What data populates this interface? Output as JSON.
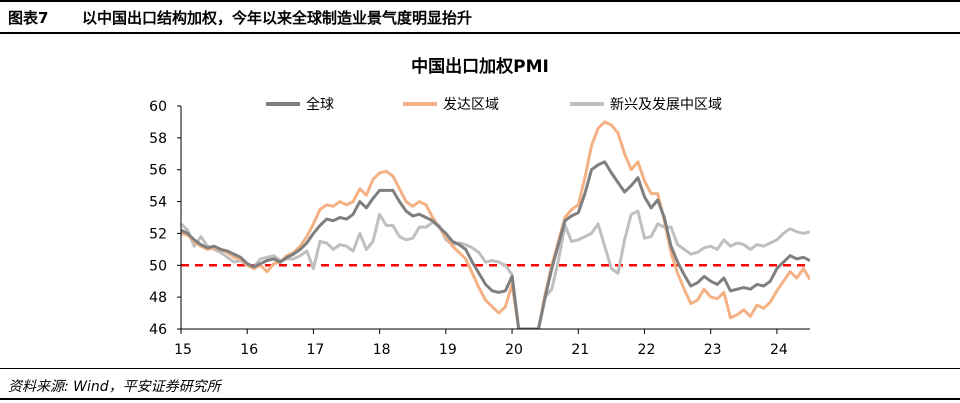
{
  "header": {
    "figure_label": "图表7",
    "title": "以中国出口结构加权，今年以来全球制造业景气度明显抬升"
  },
  "footer": {
    "source": "资料来源: Wind，平安证券研究所"
  },
  "colors": {
    "global": "#7f7f7f",
    "developed": "#f4b183",
    "emerging": "#bfbfbf",
    "reference": "#ff0000"
  },
  "chart_data": {
    "type": "line",
    "title": "中国出口加权PMI",
    "xlabel": "",
    "ylabel": "",
    "xlim": [
      15.0,
      24.5
    ],
    "ylim": [
      46,
      60
    ],
    "xticks": [
      15,
      16,
      17,
      18,
      19,
      20,
      21,
      22,
      23,
      24
    ],
    "xtick_labels": [
      "15",
      "16",
      "17",
      "18",
      "19",
      "20",
      "21",
      "22",
      "23",
      "24"
    ],
    "yticks": [
      46,
      48,
      50,
      52,
      54,
      56,
      58,
      60
    ],
    "ytick_labels": [
      "46",
      "48",
      "50",
      "52",
      "54",
      "56",
      "58",
      "60"
    ],
    "reference_line": {
      "y": 50,
      "style": "dashed"
    },
    "legend_position": "top",
    "series": [
      {
        "name": "全球",
        "color": "#7f7f7f",
        "points": [
          [
            15.0,
            52.2
          ],
          [
            15.1,
            52.0
          ],
          [
            15.2,
            51.6
          ],
          [
            15.3,
            51.3
          ],
          [
            15.4,
            51.1
          ],
          [
            15.5,
            51.2
          ],
          [
            15.6,
            51.0
          ],
          [
            15.7,
            50.9
          ],
          [
            15.8,
            50.7
          ],
          [
            15.9,
            50.5
          ],
          [
            16.0,
            50.1
          ],
          [
            16.1,
            49.9
          ],
          [
            16.2,
            50.1
          ],
          [
            16.3,
            50.3
          ],
          [
            16.4,
            50.4
          ],
          [
            16.5,
            50.2
          ],
          [
            16.6,
            50.5
          ],
          [
            16.7,
            50.7
          ],
          [
            16.8,
            51.0
          ],
          [
            16.9,
            51.4
          ],
          [
            17.0,
            52.0
          ],
          [
            17.1,
            52.5
          ],
          [
            17.2,
            52.9
          ],
          [
            17.3,
            52.8
          ],
          [
            17.4,
            53.0
          ],
          [
            17.5,
            52.9
          ],
          [
            17.6,
            53.2
          ],
          [
            17.7,
            54.0
          ],
          [
            17.8,
            53.6
          ],
          [
            17.9,
            54.2
          ],
          [
            18.0,
            54.7
          ],
          [
            18.1,
            54.7
          ],
          [
            18.2,
            54.7
          ],
          [
            18.3,
            54.0
          ],
          [
            18.4,
            53.4
          ],
          [
            18.5,
            53.1
          ],
          [
            18.6,
            53.2
          ],
          [
            18.7,
            53.0
          ],
          [
            18.8,
            52.8
          ],
          [
            18.9,
            52.4
          ],
          [
            19.0,
            52.0
          ],
          [
            19.1,
            51.5
          ],
          [
            19.2,
            51.3
          ],
          [
            19.3,
            51.0
          ],
          [
            19.4,
            50.2
          ],
          [
            19.5,
            49.5
          ],
          [
            19.6,
            48.8
          ],
          [
            19.7,
            48.4
          ],
          [
            19.8,
            48.3
          ],
          [
            19.9,
            48.4
          ],
          [
            20.0,
            49.3
          ],
          [
            20.1,
            46.0
          ],
          [
            20.4,
            46.0
          ],
          [
            20.5,
            48.0
          ],
          [
            20.6,
            49.8
          ],
          [
            20.7,
            51.3
          ],
          [
            20.8,
            52.8
          ],
          [
            20.9,
            53.1
          ],
          [
            21.0,
            53.3
          ],
          [
            21.1,
            54.5
          ],
          [
            21.2,
            56.0
          ],
          [
            21.3,
            56.3
          ],
          [
            21.4,
            56.5
          ],
          [
            21.5,
            55.8
          ],
          [
            21.6,
            55.2
          ],
          [
            21.7,
            54.6
          ],
          [
            21.8,
            55.0
          ],
          [
            21.9,
            55.5
          ],
          [
            22.0,
            54.3
          ],
          [
            22.1,
            53.6
          ],
          [
            22.2,
            54.1
          ],
          [
            22.3,
            53.0
          ],
          [
            22.4,
            51.2
          ],
          [
            22.5,
            50.2
          ],
          [
            22.6,
            49.4
          ],
          [
            22.7,
            48.7
          ],
          [
            22.8,
            48.9
          ],
          [
            22.9,
            49.3
          ],
          [
            23.0,
            49.0
          ],
          [
            23.1,
            48.8
          ],
          [
            23.2,
            49.2
          ],
          [
            23.3,
            48.4
          ],
          [
            23.4,
            48.5
          ],
          [
            23.5,
            48.6
          ],
          [
            23.6,
            48.5
          ],
          [
            23.7,
            48.8
          ],
          [
            23.8,
            48.7
          ],
          [
            23.9,
            49.0
          ],
          [
            24.0,
            49.8
          ],
          [
            24.1,
            50.2
          ],
          [
            24.2,
            50.6
          ],
          [
            24.3,
            50.4
          ],
          [
            24.4,
            50.5
          ],
          [
            24.5,
            50.3
          ]
        ]
      },
      {
        "name": "发达区域",
        "color": "#f4b183",
        "points": [
          [
            15.0,
            52.0
          ],
          [
            15.1,
            51.9
          ],
          [
            15.2,
            51.5
          ],
          [
            15.3,
            51.2
          ],
          [
            15.4,
            51.0
          ],
          [
            15.5,
            51.1
          ],
          [
            15.6,
            51.0
          ],
          [
            15.7,
            50.8
          ],
          [
            15.8,
            50.5
          ],
          [
            15.9,
            50.4
          ],
          [
            16.0,
            50.0
          ],
          [
            16.1,
            49.8
          ],
          [
            16.2,
            50.0
          ],
          [
            16.3,
            49.6
          ],
          [
            16.4,
            50.1
          ],
          [
            16.5,
            50.2
          ],
          [
            16.6,
            50.6
          ],
          [
            16.7,
            50.8
          ],
          [
            16.8,
            51.2
          ],
          [
            16.9,
            51.8
          ],
          [
            17.0,
            52.6
          ],
          [
            17.1,
            53.5
          ],
          [
            17.2,
            53.8
          ],
          [
            17.3,
            53.7
          ],
          [
            17.4,
            54.0
          ],
          [
            17.5,
            53.8
          ],
          [
            17.6,
            54.0
          ],
          [
            17.7,
            54.8
          ],
          [
            17.8,
            54.4
          ],
          [
            17.9,
            55.4
          ],
          [
            18.0,
            55.8
          ],
          [
            18.1,
            55.9
          ],
          [
            18.2,
            55.6
          ],
          [
            18.3,
            54.8
          ],
          [
            18.4,
            54.0
          ],
          [
            18.5,
            53.7
          ],
          [
            18.6,
            54.0
          ],
          [
            18.7,
            53.8
          ],
          [
            18.8,
            53.0
          ],
          [
            18.9,
            52.4
          ],
          [
            19.0,
            51.8
          ],
          [
            19.1,
            51.2
          ],
          [
            19.2,
            50.8
          ],
          [
            19.3,
            50.4
          ],
          [
            19.4,
            49.5
          ],
          [
            19.5,
            48.6
          ],
          [
            19.6,
            47.8
          ],
          [
            19.7,
            47.4
          ],
          [
            19.8,
            47.0
          ],
          [
            19.9,
            47.4
          ],
          [
            20.0,
            48.8
          ],
          [
            20.1,
            46.0
          ],
          [
            20.4,
            46.0
          ],
          [
            20.5,
            48.2
          ],
          [
            20.6,
            50.0
          ],
          [
            20.7,
            51.5
          ],
          [
            20.8,
            53.0
          ],
          [
            20.9,
            53.5
          ],
          [
            21.0,
            53.8
          ],
          [
            21.1,
            55.5
          ],
          [
            21.2,
            57.5
          ],
          [
            21.3,
            58.6
          ],
          [
            21.4,
            59.0
          ],
          [
            21.5,
            58.8
          ],
          [
            21.6,
            58.3
          ],
          [
            21.7,
            57.0
          ],
          [
            21.8,
            56.0
          ],
          [
            21.9,
            56.5
          ],
          [
            22.0,
            55.3
          ],
          [
            22.1,
            54.5
          ],
          [
            22.2,
            54.5
          ],
          [
            22.3,
            52.8
          ],
          [
            22.4,
            50.8
          ],
          [
            22.5,
            49.5
          ],
          [
            22.6,
            48.5
          ],
          [
            22.7,
            47.6
          ],
          [
            22.8,
            47.8
          ],
          [
            22.9,
            48.5
          ],
          [
            23.0,
            48.0
          ],
          [
            23.1,
            47.9
          ],
          [
            23.2,
            48.3
          ],
          [
            23.3,
            46.7
          ],
          [
            23.4,
            46.9
          ],
          [
            23.5,
            47.2
          ],
          [
            23.6,
            46.8
          ],
          [
            23.7,
            47.5
          ],
          [
            23.8,
            47.3
          ],
          [
            23.9,
            47.7
          ],
          [
            24.0,
            48.4
          ],
          [
            24.1,
            49.0
          ],
          [
            24.2,
            49.6
          ],
          [
            24.3,
            49.2
          ],
          [
            24.4,
            49.8
          ],
          [
            24.5,
            49.1
          ]
        ]
      },
      {
        "name": "新兴及发展中区域",
        "color": "#bfbfbf",
        "points": [
          [
            15.0,
            52.6
          ],
          [
            15.1,
            52.2
          ],
          [
            15.2,
            51.2
          ],
          [
            15.3,
            51.8
          ],
          [
            15.4,
            51.2
          ],
          [
            15.5,
            51.0
          ],
          [
            15.6,
            50.8
          ],
          [
            15.7,
            50.5
          ],
          [
            15.8,
            50.2
          ],
          [
            15.9,
            50.3
          ],
          [
            16.0,
            50.0
          ],
          [
            16.1,
            49.9
          ],
          [
            16.2,
            50.4
          ],
          [
            16.3,
            50.5
          ],
          [
            16.4,
            50.6
          ],
          [
            16.5,
            50.3
          ],
          [
            16.6,
            50.4
          ],
          [
            16.7,
            50.4
          ],
          [
            16.8,
            50.6
          ],
          [
            16.9,
            50.9
          ],
          [
            17.0,
            49.8
          ],
          [
            17.1,
            51.5
          ],
          [
            17.2,
            51.4
          ],
          [
            17.3,
            51.0
          ],
          [
            17.4,
            51.3
          ],
          [
            17.5,
            51.2
          ],
          [
            17.6,
            50.9
          ],
          [
            17.7,
            52.0
          ],
          [
            17.8,
            51.0
          ],
          [
            17.9,
            51.5
          ],
          [
            18.0,
            53.2
          ],
          [
            18.1,
            52.5
          ],
          [
            18.2,
            52.5
          ],
          [
            18.3,
            51.8
          ],
          [
            18.4,
            51.6
          ],
          [
            18.5,
            51.7
          ],
          [
            18.6,
            52.4
          ],
          [
            18.7,
            52.4
          ],
          [
            18.8,
            52.7
          ],
          [
            18.9,
            52.5
          ],
          [
            19.0,
            51.6
          ],
          [
            19.1,
            51.3
          ],
          [
            19.2,
            51.4
          ],
          [
            19.3,
            51.3
          ],
          [
            19.4,
            51.1
          ],
          [
            19.5,
            50.8
          ],
          [
            19.6,
            50.2
          ],
          [
            19.7,
            50.3
          ],
          [
            19.8,
            50.2
          ],
          [
            19.9,
            50.0
          ],
          [
            20.0,
            49.4
          ],
          [
            20.1,
            46.0
          ],
          [
            20.4,
            46.0
          ],
          [
            20.5,
            48.0
          ],
          [
            20.6,
            48.5
          ],
          [
            20.7,
            50.3
          ],
          [
            20.8,
            52.5
          ],
          [
            20.9,
            51.5
          ],
          [
            21.0,
            51.6
          ],
          [
            21.1,
            51.8
          ],
          [
            21.2,
            52.0
          ],
          [
            21.3,
            52.6
          ],
          [
            21.4,
            51.2
          ],
          [
            21.5,
            49.8
          ],
          [
            21.6,
            49.5
          ],
          [
            21.7,
            51.6
          ],
          [
            21.8,
            53.2
          ],
          [
            21.9,
            53.4
          ],
          [
            22.0,
            51.7
          ],
          [
            22.1,
            51.8
          ],
          [
            22.2,
            52.6
          ],
          [
            22.3,
            52.4
          ],
          [
            22.4,
            52.4
          ],
          [
            22.5,
            51.3
          ],
          [
            22.6,
            51.0
          ],
          [
            22.7,
            50.7
          ],
          [
            22.8,
            50.8
          ],
          [
            22.9,
            51.1
          ],
          [
            23.0,
            51.2
          ],
          [
            23.1,
            51.0
          ],
          [
            23.2,
            51.6
          ],
          [
            23.3,
            51.2
          ],
          [
            23.4,
            51.4
          ],
          [
            23.5,
            51.3
          ],
          [
            23.6,
            51.0
          ],
          [
            23.7,
            51.3
          ],
          [
            23.8,
            51.2
          ],
          [
            23.9,
            51.4
          ],
          [
            24.0,
            51.6
          ],
          [
            24.1,
            52.0
          ],
          [
            24.2,
            52.3
          ],
          [
            24.3,
            52.1
          ],
          [
            24.4,
            52.0
          ],
          [
            24.5,
            52.1
          ]
        ]
      }
    ]
  }
}
